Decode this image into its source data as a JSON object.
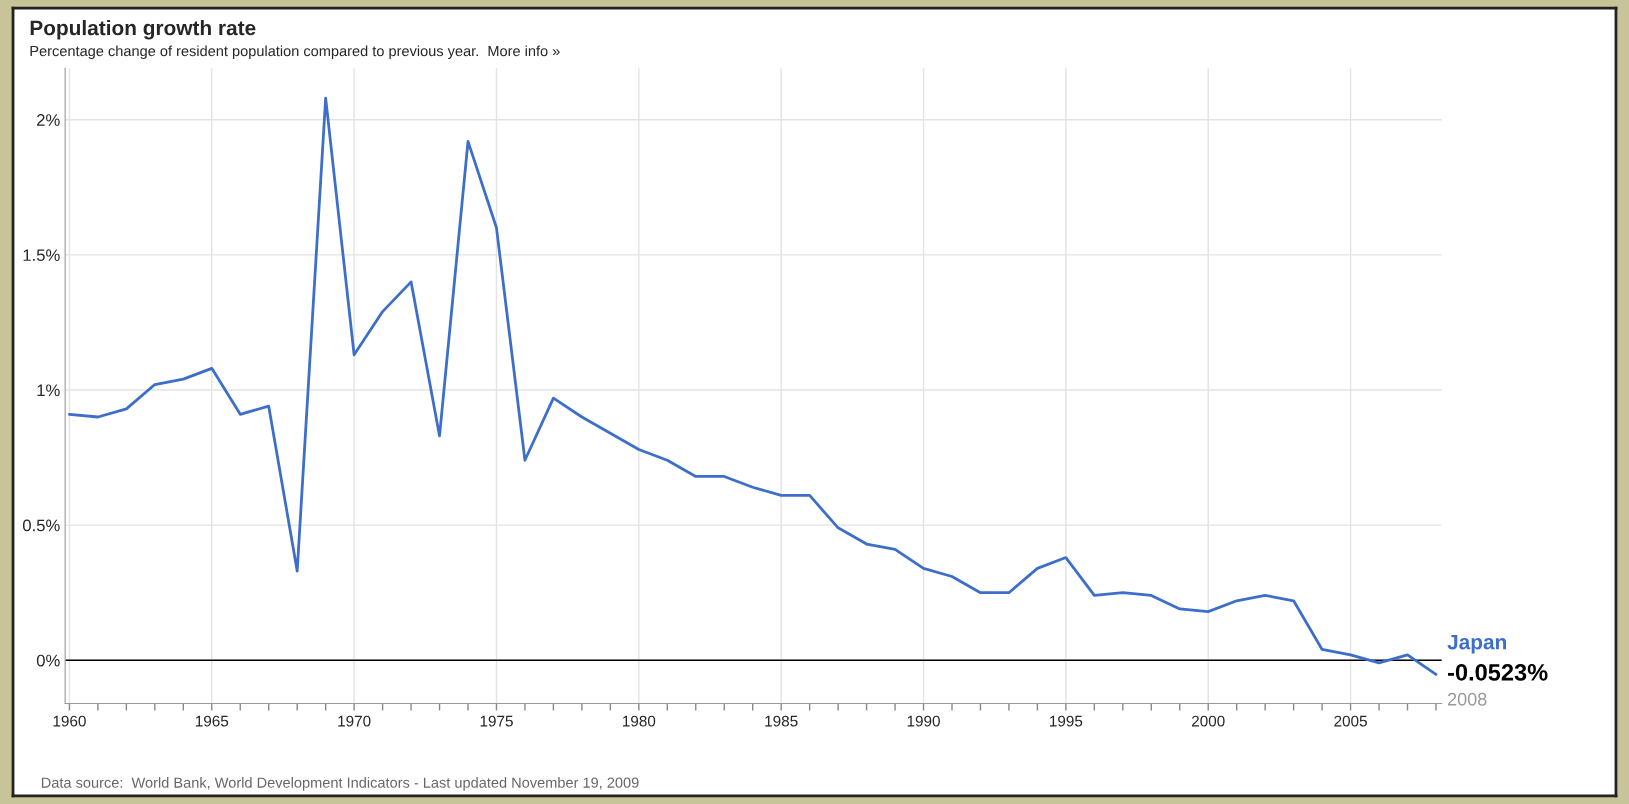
{
  "chart_data": {
    "type": "line",
    "title": "Population growth rate",
    "subtitle": "Percentage change of resident population compared to previous year.  More info »",
    "x": [
      1960,
      1961,
      1962,
      1963,
      1964,
      1965,
      1966,
      1967,
      1968,
      1969,
      1970,
      1971,
      1972,
      1973,
      1974,
      1975,
      1976,
      1977,
      1978,
      1979,
      1980,
      1981,
      1982,
      1983,
      1984,
      1985,
      1986,
      1987,
      1988,
      1989,
      1990,
      1991,
      1992,
      1993,
      1994,
      1995,
      1996,
      1997,
      1998,
      1999,
      2000,
      2001,
      2002,
      2003,
      2004,
      2005,
      2006,
      2007,
      2008
    ],
    "series": [
      {
        "name": "Japan",
        "color": "#3d6ec9",
        "values": [
          0.91,
          0.9,
          0.93,
          1.02,
          1.04,
          1.08,
          0.91,
          0.94,
          0.33,
          2.08,
          1.13,
          1.29,
          1.4,
          0.83,
          1.92,
          1.6,
          0.74,
          0.97,
          0.9,
          0.84,
          0.78,
          0.74,
          0.68,
          0.68,
          0.64,
          0.61,
          0.61,
          0.49,
          0.43,
          0.41,
          0.34,
          0.31,
          0.25,
          0.25,
          0.34,
          0.38,
          0.24,
          0.25,
          0.24,
          0.19,
          0.18,
          0.22,
          0.24,
          0.22,
          0.04,
          0.02,
          -0.01,
          0.02,
          -0.0523
        ]
      }
    ],
    "xlim": [
      1959.85,
      2008.2
    ],
    "ylim": [
      -0.16,
      2.19
    ],
    "xticks": [
      1960,
      {
        "value": 1961,
        "label": null
      },
      {
        "value": 1962,
        "label": null
      },
      {
        "value": 1963,
        "label": null
      },
      {
        "value": 1964,
        "label": null
      },
      1965,
      {
        "value": 1966,
        "label": null
      },
      {
        "value": 1967,
        "label": null
      },
      {
        "value": 1968,
        "label": null
      },
      {
        "value": 1969,
        "label": null
      },
      1970,
      {
        "value": 1971,
        "label": null
      },
      {
        "value": 1972,
        "label": null
      },
      {
        "value": 1973,
        "label": null
      },
      {
        "value": 1974,
        "label": null
      },
      1975,
      {
        "value": 1976,
        "label": null
      },
      {
        "value": 1977,
        "label": null
      },
      {
        "value": 1978,
        "label": null
      },
      {
        "value": 1979,
        "label": null
      },
      1980,
      {
        "value": 1981,
        "label": null
      },
      {
        "value": 1982,
        "label": null
      },
      {
        "value": 1983,
        "label": null
      },
      {
        "value": 1984,
        "label": null
      },
      1985,
      {
        "value": 1986,
        "label": null
      },
      {
        "value": 1987,
        "label": null
      },
      {
        "value": 1988,
        "label": null
      },
      {
        "value": 1989,
        "label": null
      },
      1990,
      {
        "value": 1991,
        "label": null
      },
      {
        "value": 1992,
        "label": null
      },
      {
        "value": 1993,
        "label": null
      },
      {
        "value": 1994,
        "label": null
      },
      1995,
      {
        "value": 1996,
        "label": null
      },
      {
        "value": 1997,
        "label": null
      },
      {
        "value": 1998,
        "label": null
      },
      {
        "value": 1999,
        "label": null
      },
      2000,
      {
        "value": 2001,
        "label": null
      },
      {
        "value": 2002,
        "label": null
      },
      {
        "value": 2003,
        "label": null
      },
      {
        "value": 2004,
        "label": null
      },
      2005,
      {
        "value": 2006,
        "label": null
      },
      {
        "value": 2007,
        "label": null
      },
      {
        "value": 2008,
        "label": null
      }
    ],
    "yticks": [
      {
        "value": 0,
        "label": "0%"
      },
      {
        "value": 0.5,
        "label": "0.5%"
      },
      {
        "value": 1,
        "label": "1%"
      },
      {
        "value": 1.5,
        "label": "1.5%"
      },
      {
        "value": 2,
        "label": "2%"
      }
    ],
    "grid": true,
    "line_style": "solid",
    "marker": "none",
    "ref_lines": [
      {
        "axis": "y",
        "value": 0,
        "label": null,
        "color": "#000000"
      }
    ],
    "annotations": [
      {
        "text": "-0.0523%",
        "x": 2008,
        "y": -0.0523
      },
      {
        "text": "2008",
        "x": 2008,
        "y": -0.0523
      },
      "Data source:  World Bank, World Development Indicators - Last updated November 19, 2009"
    ]
  }
}
